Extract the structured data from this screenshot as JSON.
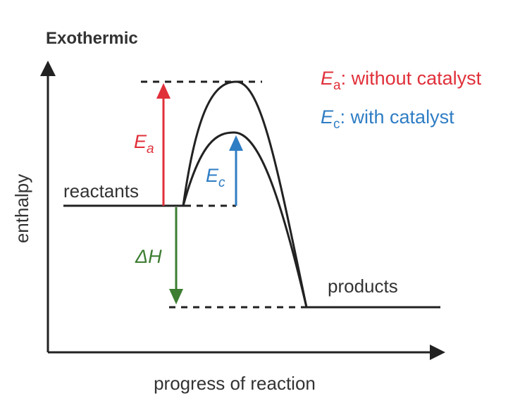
{
  "title": "Exothermic",
  "legend": [
    {
      "symbol": "E",
      "subscript": "a",
      "text": ": without catalyst"
    },
    {
      "symbol": "E",
      "subscript": "c",
      "text": ": with catalyst"
    }
  ],
  "labels": {
    "activation_uncatalysed": {
      "symbol": "E",
      "subscript": "a"
    },
    "activation_catalysed": {
      "symbol": "E",
      "subscript": "c"
    },
    "enthalpy_change": "ΔH",
    "reactants": "reactants",
    "products": "products"
  },
  "axes": {
    "y": "enthalpy",
    "x": "progress of reaction"
  }
}
